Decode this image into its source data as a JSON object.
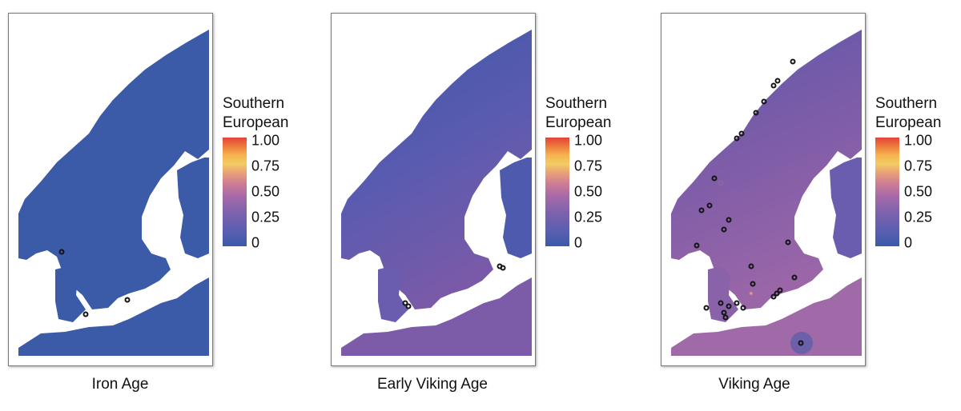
{
  "legend": {
    "title_line1": "Southern",
    "title_line2": "European",
    "ticks": [
      "1.00",
      "0.75",
      "0.50",
      "0.25",
      "0"
    ]
  },
  "panels": [
    {
      "caption": "Iron Age"
    },
    {
      "caption": "Early Viking Age"
    },
    {
      "caption": "Viking Age"
    }
  ],
  "colors": {
    "low": "#3b5aa8",
    "mid": "#a66aa8",
    "high": "#e2443a",
    "background_sea": "#ffffff"
  }
}
